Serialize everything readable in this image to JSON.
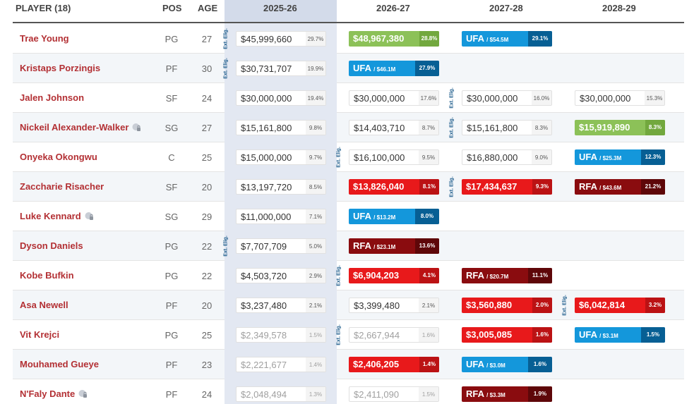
{
  "header": {
    "player_col": "PLAYER (18)",
    "pos_col": "POS",
    "age_col": "AGE",
    "seasons": [
      "2025-26",
      "2026-27",
      "2027-28",
      "2028-29"
    ]
  },
  "ext_label": "Ext. Elig.",
  "ufa_label": "UFA",
  "rfa_label": "RFA",
  "colors": {
    "player_name": "#b33034",
    "current_season_band": "#e3e8f2",
    "green_salary": "#8cc158",
    "red_salary": "#e8191b",
    "ufa": "#1497db",
    "rfa": "#8a0c0f"
  },
  "players": [
    {
      "name": "Trae Young",
      "pos": "PG",
      "age": "27",
      "cells": [
        {
          "type": "std",
          "amt": "$45,999,660",
          "pct": "29.7%"
        },
        {
          "type": "green",
          "amt": "$48,967,380",
          "pct": "28.8%"
        },
        {
          "type": "ufa",
          "amt": "/ $54.5M",
          "pct": "29.1%"
        },
        null
      ]
    },
    {
      "name": "Kristaps Porzingis",
      "pos": "PF",
      "age": "30",
      "cells": [
        {
          "type": "std",
          "amt": "$30,731,707",
          "pct": "19.9%"
        },
        {
          "type": "ufa",
          "amt": "/ $46.1M",
          "pct": "27.9%"
        },
        null,
        null
      ]
    },
    {
      "name": "Jalen Johnson",
      "pos": "SF",
      "age": "24",
      "cells": [
        {
          "type": "std",
          "amt": "$30,000,000",
          "pct": "19.4%"
        },
        {
          "type": "std",
          "amt": "$30,000,000",
          "pct": "17.6%"
        },
        {
          "type": "std",
          "amt": "$30,000,000",
          "pct": "16.0%"
        },
        {
          "type": "std",
          "amt": "$30,000,000",
          "pct": "15.3%"
        }
      ]
    },
    {
      "name": "Nickeil Alexander-Walker",
      "pos": "SG",
      "age": "27",
      "cells": [
        {
          "type": "std",
          "amt": "$15,161,800",
          "pct": "9.8%"
        },
        {
          "type": "std",
          "amt": "$14,403,710",
          "pct": "8.7%"
        },
        {
          "type": "std",
          "amt": "$15,161,800",
          "pct": "8.3%"
        },
        {
          "type": "green",
          "amt": "$15,919,890",
          "pct": "8.3%"
        }
      ]
    },
    {
      "name": "Onyeka Okongwu",
      "pos": "C",
      "age": "25",
      "cells": [
        {
          "type": "std",
          "amt": "$15,000,000",
          "pct": "9.7%"
        },
        {
          "type": "std",
          "amt": "$16,100,000",
          "pct": "9.5%"
        },
        {
          "type": "std",
          "amt": "$16,880,000",
          "pct": "9.0%"
        },
        {
          "type": "ufa",
          "amt": "/ $25.3M",
          "pct": "12.3%"
        }
      ]
    },
    {
      "name": "Zaccharie Risacher",
      "pos": "SF",
      "age": "20",
      "cells": [
        {
          "type": "std",
          "amt": "$13,197,720",
          "pct": "8.5%"
        },
        {
          "type": "red",
          "amt": "$13,826,040",
          "pct": "8.1%"
        },
        {
          "type": "red",
          "amt": "$17,434,637",
          "pct": "9.3%"
        },
        {
          "type": "rfa",
          "amt": "/ $43.6M",
          "pct": "21.2%"
        }
      ]
    },
    {
      "name": "Luke Kennard",
      "pos": "SG",
      "age": "29",
      "cells": [
        {
          "type": "std",
          "amt": "$11,000,000",
          "pct": "7.1%"
        },
        {
          "type": "ufa",
          "amt": "/ $13.2M",
          "pct": "8.0%"
        },
        null,
        null
      ]
    },
    {
      "name": "Dyson Daniels",
      "pos": "PG",
      "age": "22",
      "cells": [
        {
          "type": "std",
          "amt": "$7,707,709",
          "pct": "5.0%"
        },
        {
          "type": "rfa",
          "amt": "/ $23.1M",
          "pct": "13.6%"
        },
        null,
        null
      ]
    },
    {
      "name": "Kobe Bufkin",
      "pos": "PG",
      "age": "22",
      "cells": [
        {
          "type": "std",
          "amt": "$4,503,720",
          "pct": "2.9%"
        },
        {
          "type": "red",
          "amt": "$6,904,203",
          "pct": "4.1%"
        },
        {
          "type": "rfa",
          "amt": "/ $20.7M",
          "pct": "11.1%"
        },
        null
      ]
    },
    {
      "name": "Asa Newell",
      "pos": "PF",
      "age": "20",
      "cells": [
        {
          "type": "std",
          "amt": "$3,237,480",
          "pct": "2.1%"
        },
        {
          "type": "std",
          "amt": "$3,399,480",
          "pct": "2.1%"
        },
        {
          "type": "red",
          "amt": "$3,560,880",
          "pct": "2.0%"
        },
        {
          "type": "red",
          "amt": "$6,042,814",
          "pct": "3.2%"
        }
      ]
    },
    {
      "name": "Vit Krejci",
      "pos": "PG",
      "age": "25",
      "cells": [
        {
          "type": "dim",
          "amt": "$2,349,578",
          "pct": "1.5%"
        },
        {
          "type": "dim",
          "amt": "$2,667,944",
          "pct": "1.6%"
        },
        {
          "type": "red",
          "amt": "$3,005,085",
          "pct": "1.6%"
        },
        {
          "type": "ufa",
          "amt": "/ $3.1M",
          "pct": "1.5%"
        }
      ]
    },
    {
      "name": "Mouhamed Gueye",
      "pos": "PF",
      "age": "23",
      "cells": [
        {
          "type": "dim",
          "amt": "$2,221,677",
          "pct": "1.4%"
        },
        {
          "type": "red",
          "amt": "$2,406,205",
          "pct": "1.4%"
        },
        {
          "type": "ufa",
          "amt": "/ $3.0M",
          "pct": "1.6%"
        },
        null
      ]
    },
    {
      "name": "N'Faly Dante",
      "pos": "PF",
      "age": "24",
      "cells": [
        {
          "type": "dim",
          "amt": "$2,048,494",
          "pct": "1.3%"
        },
        {
          "type": "dim",
          "amt": "$2,411,090",
          "pct": "1.5%"
        },
        {
          "type": "rfa",
          "amt": "/ $3.3M",
          "pct": "1.9%"
        },
        null
      ]
    }
  ]
}
